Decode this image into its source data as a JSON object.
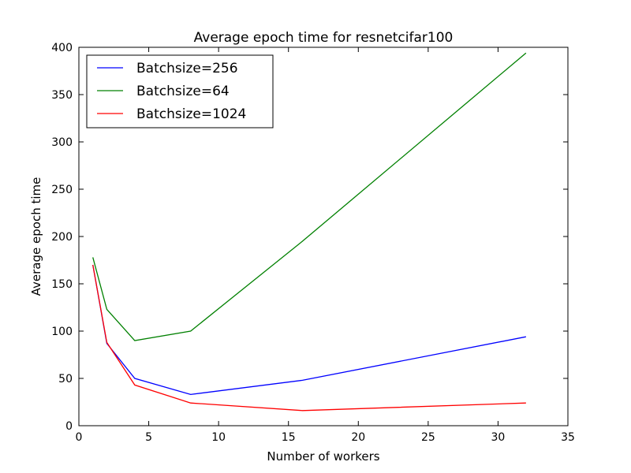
{
  "chart_data": {
    "type": "line",
    "title": "Average epoch time for resnetcifar100",
    "xlabel": "Number of workers",
    "ylabel": "Average epoch time",
    "xlim": [
      0,
      35
    ],
    "ylim": [
      0,
      400
    ],
    "xticks": [
      0,
      5,
      10,
      15,
      20,
      25,
      30,
      35
    ],
    "yticks": [
      0,
      50,
      100,
      150,
      200,
      250,
      300,
      350,
      400
    ],
    "grid": false,
    "legend_position": "top-left",
    "series": [
      {
        "name": "Batchsize=256",
        "color": "#0000ff",
        "x": [
          1,
          2,
          4,
          8,
          16,
          32
        ],
        "y": [
          170,
          87,
          50,
          33,
          48,
          94
        ]
      },
      {
        "name": "Batchsize=64",
        "color": "#008000",
        "x": [
          1,
          2,
          4,
          8,
          16,
          32
        ],
        "y": [
          178,
          123,
          90,
          100,
          195,
          394
        ]
      },
      {
        "name": "Batchsize=1024",
        "color": "#ff0000",
        "x": [
          1,
          2,
          4,
          8,
          16,
          32
        ],
        "y": [
          170,
          88,
          43,
          24,
          16,
          24
        ]
      }
    ]
  }
}
